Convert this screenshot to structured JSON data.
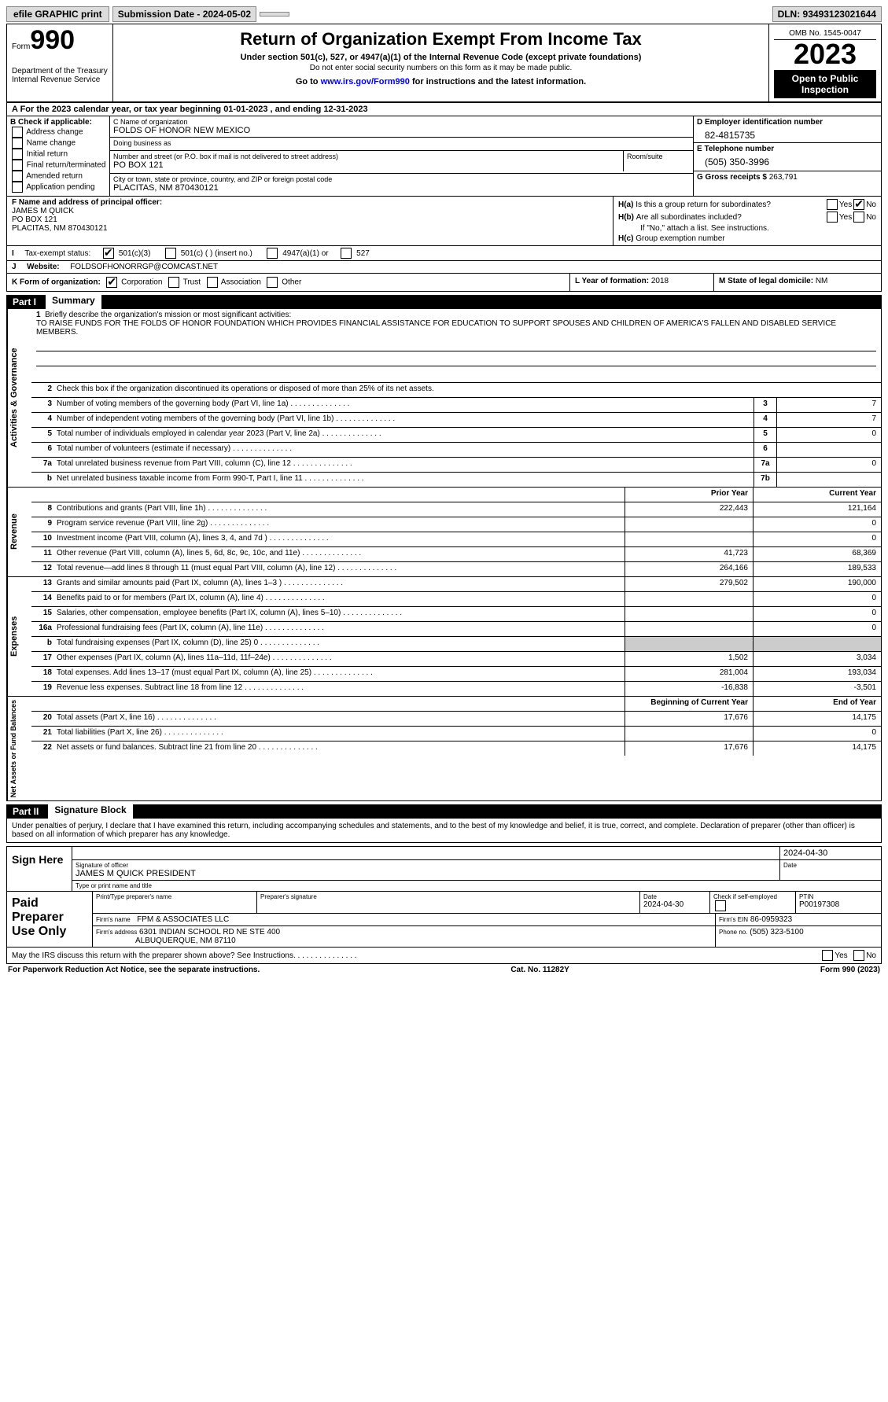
{
  "topbar": {
    "efile": "efile GRAPHIC print",
    "submission": "Submission Date - 2024-05-02",
    "dln": "DLN: 93493123021644"
  },
  "header": {
    "form_word": "Form",
    "form_num": "990",
    "dept": "Department of the Treasury\nInternal Revenue Service",
    "title": "Return of Organization Exempt From Income Tax",
    "sub": "Under section 501(c), 527, or 4947(a)(1) of the Internal Revenue Code (except private foundations)",
    "sub2": "Do not enter social security numbers on this form as it may be made public.",
    "goto_pre": "Go to ",
    "goto_link": "www.irs.gov/Form990",
    "goto_post": " for instructions and the latest information.",
    "omb": "OMB No. 1545-0047",
    "year": "2023",
    "open": "Open to Public Inspection"
  },
  "row_a": "A For the 2023 calendar year, or tax year beginning 01-01-2023    , and ending 12-31-2023",
  "box_b": {
    "label": "B Check if applicable:",
    "items": [
      "Address change",
      "Name change",
      "Initial return",
      "Final return/terminated",
      "Amended return",
      "Application pending"
    ]
  },
  "box_c": {
    "name_lbl": "C Name of organization",
    "name": "FOLDS OF HONOR NEW MEXICO",
    "dba_lbl": "Doing business as",
    "dba": "",
    "street_lbl": "Number and street (or P.O. box if mail is not delivered to street address)",
    "street": "PO BOX 121",
    "room_lbl": "Room/suite",
    "city_lbl": "City or town, state or province, country, and ZIP or foreign postal code",
    "city": "PLACITAS, NM  870430121"
  },
  "box_d": {
    "ein_lbl": "D Employer identification number",
    "ein": "82-4815735",
    "phone_lbl": "E Telephone number",
    "phone": "(505) 350-3996",
    "gross_lbl": "G Gross receipts $",
    "gross": "263,791"
  },
  "box_f": {
    "lbl": "F  Name and address of principal officer:",
    "name": "JAMES M QUICK",
    "addr1": "PO BOX 121",
    "addr2": "PLACITAS, NM  870430121"
  },
  "box_h": {
    "ha": "Is this a group return for subordinates?",
    "hb": "Are all subordinates included?",
    "hb_note": "If \"No,\" attach a list. See instructions.",
    "hc": "Group exemption number",
    "yes": "Yes",
    "no": "No"
  },
  "row_i": {
    "lbl": "Tax-exempt status:",
    "o1": "501(c)(3)",
    "o2": "501(c) (   ) (insert no.)",
    "o3": "4947(a)(1) or",
    "o4": "527"
  },
  "row_j": {
    "lbl": "Website:",
    "val": "FOLDSOFHONORRGP@COMCAST.NET"
  },
  "row_k": {
    "lbl": "K Form of organization:",
    "o1": "Corporation",
    "o2": "Trust",
    "o3": "Association",
    "o4": "Other"
  },
  "row_l": {
    "lbl": "L Year of formation:",
    "val": "2018"
  },
  "row_m": {
    "lbl": "M State of legal domicile:",
    "val": "NM"
  },
  "part1": {
    "num": "Part I",
    "title": "Summary"
  },
  "summary": {
    "side1": "Activities & Governance",
    "side2": "Revenue",
    "side3": "Expenses",
    "side4": "Net Assets or Fund Balances",
    "mission_lbl": "Briefly describe the organization's mission or most significant activities:",
    "mission": "TO RAISE FUNDS FOR THE FOLDS OF HONOR FOUNDATION WHICH PROVIDES FINANCIAL ASSISTANCE FOR EDUCATION TO SUPPORT SPOUSES AND CHILDREN OF AMERICA'S FALLEN AND DISABLED SERVICE MEMBERS.",
    "l2": "Check this box        if the organization discontinued its operations or disposed of more than 25% of its net assets.",
    "rows_gov": [
      {
        "n": "3",
        "t": "Number of voting members of the governing body (Part VI, line 1a)",
        "c": "3",
        "v": "7"
      },
      {
        "n": "4",
        "t": "Number of independent voting members of the governing body (Part VI, line 1b)",
        "c": "4",
        "v": "7"
      },
      {
        "n": "5",
        "t": "Total number of individuals employed in calendar year 2023 (Part V, line 2a)",
        "c": "5",
        "v": "0"
      },
      {
        "n": "6",
        "t": "Total number of volunteers (estimate if necessary)",
        "c": "6",
        "v": ""
      },
      {
        "n": "7a",
        "t": "Total unrelated business revenue from Part VIII, column (C), line 12",
        "c": "7a",
        "v": "0"
      },
      {
        "n": "b",
        "t": "Net unrelated business taxable income from Form 990-T, Part I, line 11",
        "c": "7b",
        "v": ""
      }
    ],
    "col_hdr_prior": "Prior Year",
    "col_hdr_curr": "Current Year",
    "rows_rev": [
      {
        "n": "8",
        "t": "Contributions and grants (Part VIII, line 1h)",
        "p": "222,443",
        "c": "121,164"
      },
      {
        "n": "9",
        "t": "Program service revenue (Part VIII, line 2g)",
        "p": "",
        "c": "0"
      },
      {
        "n": "10",
        "t": "Investment income (Part VIII, column (A), lines 3, 4, and 7d )",
        "p": "",
        "c": "0"
      },
      {
        "n": "11",
        "t": "Other revenue (Part VIII, column (A), lines 5, 6d, 8c, 9c, 10c, and 11e)",
        "p": "41,723",
        "c": "68,369"
      },
      {
        "n": "12",
        "t": "Total revenue—add lines 8 through 11 (must equal Part VIII, column (A), line 12)",
        "p": "264,166",
        "c": "189,533"
      }
    ],
    "rows_exp": [
      {
        "n": "13",
        "t": "Grants and similar amounts paid (Part IX, column (A), lines 1–3 )",
        "p": "279,502",
        "c": "190,000"
      },
      {
        "n": "14",
        "t": "Benefits paid to or for members (Part IX, column (A), line 4)",
        "p": "",
        "c": "0"
      },
      {
        "n": "15",
        "t": "Salaries, other compensation, employee benefits (Part IX, column (A), lines 5–10)",
        "p": "",
        "c": "0"
      },
      {
        "n": "16a",
        "t": "Professional fundraising fees (Part IX, column (A), line 11e)",
        "p": "",
        "c": "0"
      },
      {
        "n": "b",
        "t": "Total fundraising expenses (Part IX, column (D), line 25) 0",
        "p": "shade",
        "c": "shade"
      },
      {
        "n": "17",
        "t": "Other expenses (Part IX, column (A), lines 11a–11d, 11f–24e)",
        "p": "1,502",
        "c": "3,034"
      },
      {
        "n": "18",
        "t": "Total expenses. Add lines 13–17 (must equal Part IX, column (A), line 25)",
        "p": "281,004",
        "c": "193,034"
      },
      {
        "n": "19",
        "t": "Revenue less expenses. Subtract line 18 from line 12",
        "p": "-16,838",
        "c": "-3,501"
      }
    ],
    "col_hdr_boy": "Beginning of Current Year",
    "col_hdr_eoy": "End of Year",
    "rows_net": [
      {
        "n": "20",
        "t": "Total assets (Part X, line 16)",
        "p": "17,676",
        "c": "14,175"
      },
      {
        "n": "21",
        "t": "Total liabilities (Part X, line 26)",
        "p": "",
        "c": "0"
      },
      {
        "n": "22",
        "t": "Net assets or fund balances. Subtract line 21 from line 20",
        "p": "17,676",
        "c": "14,175"
      }
    ]
  },
  "part2": {
    "num": "Part II",
    "title": "Signature Block"
  },
  "sig": {
    "decl": "Under penalties of perjury, I declare that I have examined this return, including accompanying schedules and statements, and to the best of my knowledge and belief, it is true, correct, and complete. Declaration of preparer (other than officer) is based on all information of which preparer has any knowledge.",
    "sign_here": "Sign Here",
    "date": "2024-04-30",
    "sig_lbl": "Signature of officer",
    "officer": "JAMES M QUICK PRESIDENT",
    "name_lbl": "Type or print name and title",
    "date_lbl": "Date"
  },
  "paid": {
    "hdr": "Paid Preparer Use Only",
    "name_lbl": "Print/Type preparer's name",
    "sig_lbl": "Preparer's signature",
    "date_lbl": "Date",
    "date": "2024-04-30",
    "check_lbl": "Check         if self-employed",
    "ptin_lbl": "PTIN",
    "ptin": "P00197308",
    "firm_name_lbl": "Firm's name",
    "firm_name": "FPM & ASSOCIATES LLC",
    "firm_ein_lbl": "Firm's EIN",
    "firm_ein": "86-0959323",
    "firm_addr_lbl": "Firm's address",
    "firm_addr1": "6301 INDIAN SCHOOL RD NE STE 400",
    "firm_addr2": "ALBUQUERQUE, NM  87110",
    "phone_lbl": "Phone no.",
    "phone": "(505) 323-5100"
  },
  "irs_discuss": {
    "txt": "May the IRS discuss this return with the preparer shown above? See Instructions.",
    "yes": "Yes",
    "no": "No"
  },
  "footer": {
    "left": "For Paperwork Reduction Act Notice, see the separate instructions.",
    "mid": "Cat. No. 11282Y",
    "right": "Form 990 (2023)"
  }
}
